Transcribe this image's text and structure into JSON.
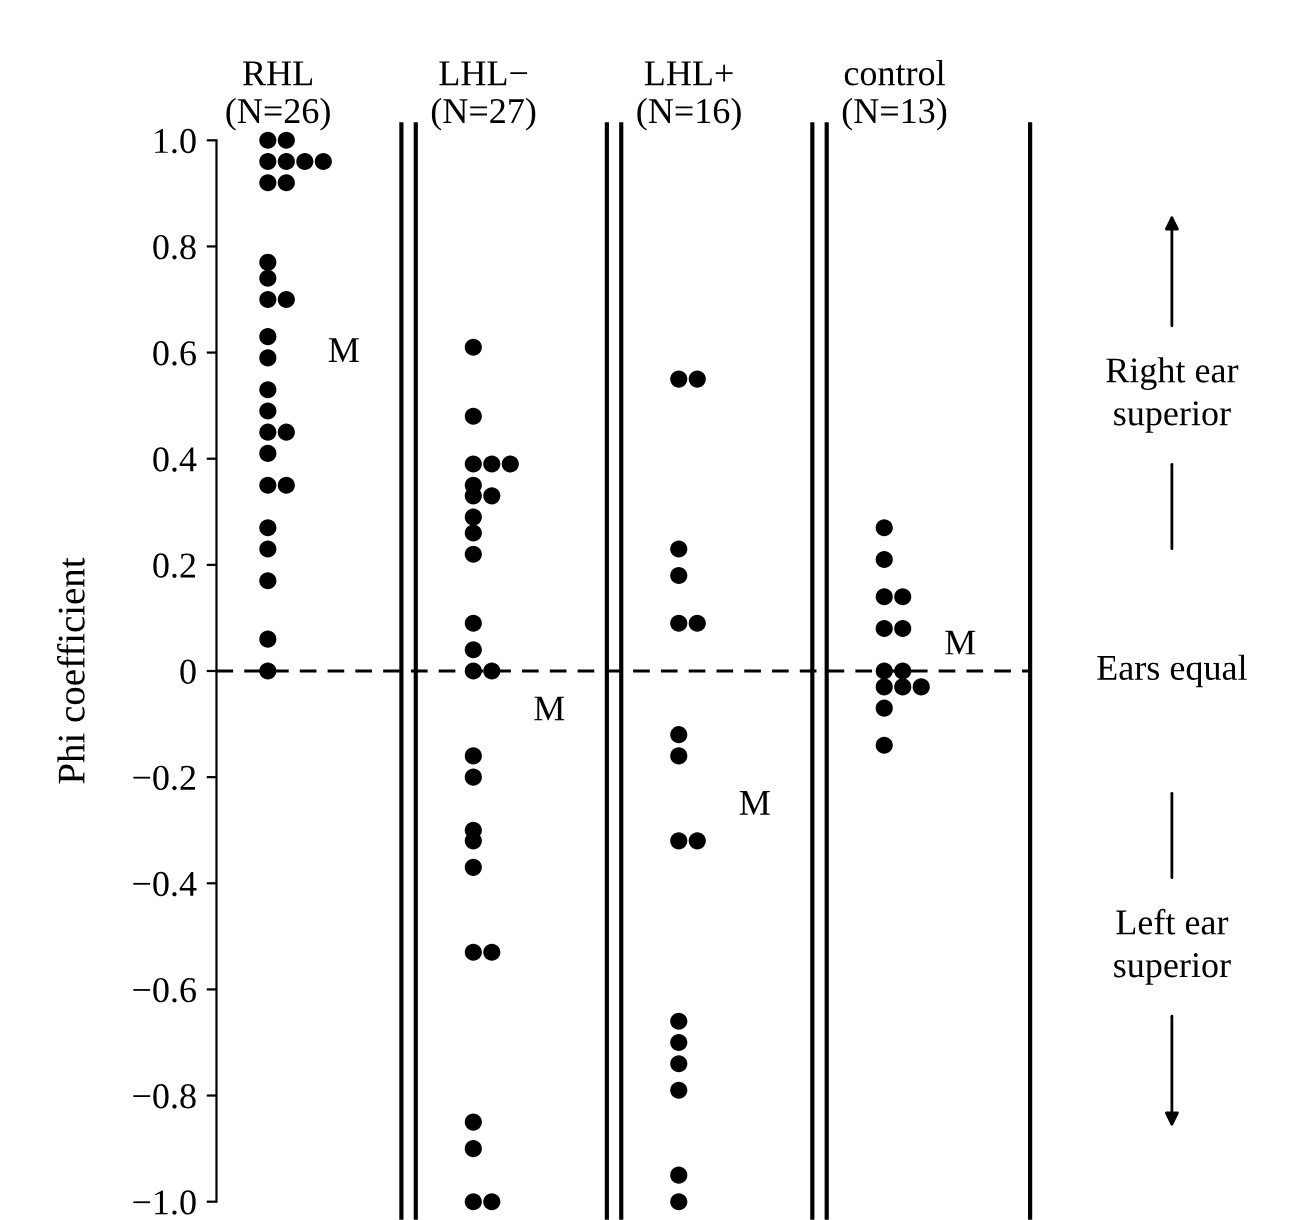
{
  "chart_data": {
    "type": "scatter",
    "categories": [
      "RHL\n(N=26)",
      "LHL−\n(N=27)",
      "LHL+\n(N=16)",
      "control\n(N=13)"
    ],
    "ylabel": "Phi coefficient",
    "ylim": [
      -1.0,
      1.0
    ],
    "yticks": [
      {
        "value": 1.0,
        "label": "1.0"
      },
      {
        "value": 0.8,
        "label": "0.8"
      },
      {
        "value": 0.6,
        "label": "0.6"
      },
      {
        "value": 0.4,
        "label": "0.4"
      },
      {
        "value": 0.2,
        "label": "0.2"
      },
      {
        "value": 0,
        "label": "0"
      },
      {
        "value": -0.2,
        "label": "−0.2"
      },
      {
        "value": -0.4,
        "label": "−0.4"
      },
      {
        "value": -0.6,
        "label": "−0.6"
      },
      {
        "value": -0.8,
        "label": "−0.8"
      },
      {
        "value": -1.0,
        "label": "−1.0"
      }
    ],
    "tick_labels": "y",
    "grid": false,
    "legend": false,
    "marker": "circle",
    "series": [
      {
        "color": "#000000",
        "x": [
          "RHL\n(N=26)",
          "RHL\n(N=26)",
          "RHL\n(N=26)",
          "RHL\n(N=26)",
          "RHL\n(N=26)",
          "RHL\n(N=26)",
          "RHL\n(N=26)",
          "RHL\n(N=26)",
          "RHL\n(N=26)",
          "RHL\n(N=26)",
          "RHL\n(N=26)",
          "RHL\n(N=26)",
          "RHL\n(N=26)",
          "RHL\n(N=26)",
          "RHL\n(N=26)",
          "RHL\n(N=26)",
          "RHL\n(N=26)",
          "RHL\n(N=26)",
          "RHL\n(N=26)",
          "RHL\n(N=26)",
          "RHL\n(N=26)",
          "RHL\n(N=26)",
          "RHL\n(N=26)",
          "RHL\n(N=26)",
          "RHL\n(N=26)",
          "RHL\n(N=26)"
        ],
        "values": [
          1.0,
          1.0,
          0.96,
          0.96,
          0.96,
          0.96,
          0.92,
          0.92,
          0.77,
          0.74,
          0.7,
          0.7,
          0.63,
          0.59,
          0.53,
          0.49,
          0.45,
          0.45,
          0.41,
          0.35,
          0.35,
          0.27,
          0.23,
          0.17,
          0.06,
          0.0
        ]
      },
      {
        "color": "#000000",
        "x": [
          "LHL−\n(N=27)",
          "LHL−\n(N=27)",
          "LHL−\n(N=27)",
          "LHL−\n(N=27)",
          "LHL−\n(N=27)",
          "LHL−\n(N=27)",
          "LHL−\n(N=27)",
          "LHL−\n(N=27)",
          "LHL−\n(N=27)",
          "LHL−\n(N=27)",
          "LHL−\n(N=27)",
          "LHL−\n(N=27)",
          "LHL−\n(N=27)",
          "LHL−\n(N=27)",
          "LHL−\n(N=27)",
          "LHL−\n(N=27)",
          "LHL−\n(N=27)",
          "LHL−\n(N=27)",
          "LHL−\n(N=27)",
          "LHL−\n(N=27)",
          "LHL−\n(N=27)",
          "LHL−\n(N=27)",
          "LHL−\n(N=27)",
          "LHL−\n(N=27)",
          "LHL−\n(N=27)",
          "LHL−\n(N=27)"
        ],
        "values": [
          0.61,
          0.48,
          0.39,
          0.39,
          0.39,
          0.35,
          0.33,
          0.33,
          0.29,
          0.26,
          0.22,
          0.09,
          0.04,
          0.0,
          0.0,
          -0.16,
          -0.2,
          -0.3,
          -0.32,
          -0.37,
          -0.53,
          -0.53,
          -0.85,
          -0.9,
          -1.0,
          -1.0
        ]
      },
      {
        "color": "#000000",
        "x": [
          "LHL+\n(N=16)",
          "LHL+\n(N=16)",
          "LHL+\n(N=16)",
          "LHL+\n(N=16)",
          "LHL+\n(N=16)",
          "LHL+\n(N=16)",
          "LHL+\n(N=16)",
          "LHL+\n(N=16)",
          "LHL+\n(N=16)",
          "LHL+\n(N=16)",
          "LHL+\n(N=16)",
          "LHL+\n(N=16)",
          "LHL+\n(N=16)",
          "LHL+\n(N=16)",
          "LHL+\n(N=16)",
          "LHL+\n(N=16)"
        ],
        "values": [
          0.55,
          0.55,
          0.23,
          0.18,
          0.09,
          0.09,
          -0.12,
          -0.16,
          -0.32,
          -0.32,
          -0.66,
          -0.7,
          -0.74,
          -0.79,
          -0.95,
          -1.0
        ]
      },
      {
        "color": "#000000",
        "x": [
          "control\n(N=13)",
          "control\n(N=13)",
          "control\n(N=13)",
          "control\n(N=13)",
          "control\n(N=13)",
          "control\n(N=13)",
          "control\n(N=13)",
          "control\n(N=13)",
          "control\n(N=13)",
          "control\n(N=13)",
          "control\n(N=13)",
          "control\n(N=13)",
          "control\n(N=13)"
        ],
        "values": [
          0.27,
          0.21,
          0.14,
          0.14,
          0.08,
          0.08,
          0.0,
          0.0,
          -0.03,
          -0.03,
          -0.03,
          -0.07,
          -0.14
        ]
      }
    ],
    "ref_lines": [
      {
        "axis": "y",
        "value": 0,
        "label": "Ears equal",
        "line_style": "dashed",
        "color": "#000000"
      }
    ],
    "annotations": [
      "M",
      "M",
      "M",
      "M",
      "Right ear\nsuperior",
      "Left ear\nsuperior"
    ]
  }
}
